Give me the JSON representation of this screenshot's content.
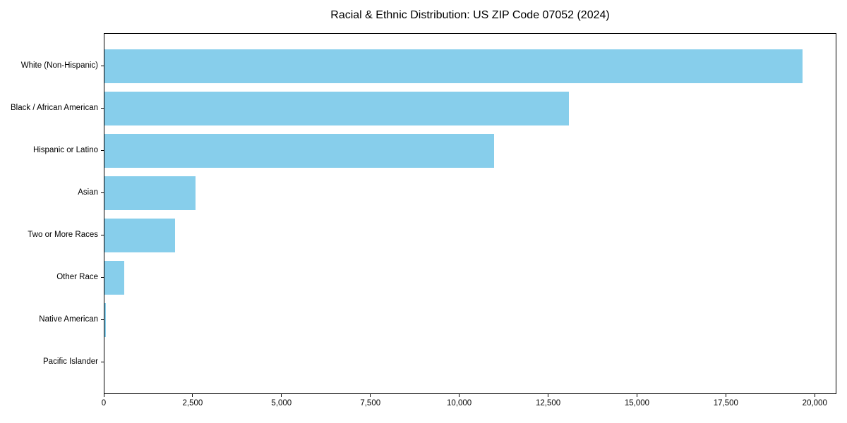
{
  "title": "Racial & Ethnic Distribution: US ZIP Code 07052 (2024)",
  "chart_data": {
    "type": "bar",
    "orientation": "horizontal",
    "title": "Racial & Ethnic Distribution: US ZIP Code 07052 (2024)",
    "xlabel": "",
    "ylabel": "",
    "categories": [
      "White (Non-Hispanic)",
      "Black / African American",
      "Hispanic or Latino",
      "Asian",
      "Two or More Races",
      "Other Race",
      "Native American",
      "Pacific Islander"
    ],
    "values": [
      19630,
      13060,
      10960,
      2570,
      1980,
      550,
      30,
      0
    ],
    "xlim": [
      0,
      20610
    ],
    "x_ticks": [
      0,
      2500,
      5000,
      7500,
      10000,
      12500,
      15000,
      17500,
      20000
    ],
    "x_tick_labels": [
      "0",
      "2,500",
      "5,000",
      "7,500",
      "10,000",
      "12,500",
      "15,000",
      "17,500",
      "20,000"
    ],
    "bar_color": "#87CEEB",
    "frame_color": "#000000",
    "grid": false,
    "legend": false
  }
}
